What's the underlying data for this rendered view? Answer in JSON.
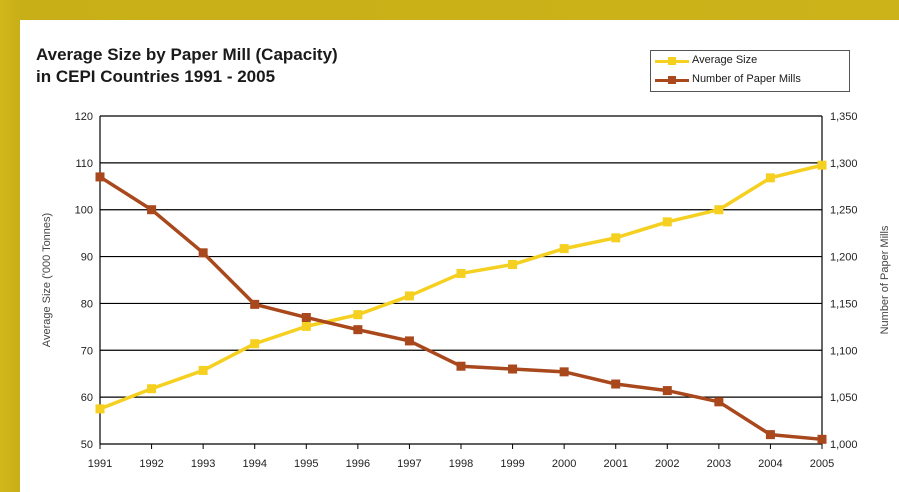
{
  "chart_data": {
    "type": "line",
    "title_line1": "Average Size by Paper Mill (Capacity)",
    "title_line2": "in CEPI Countries 1991 - 2005",
    "ylabel_left": "Average Size ('000 Tonnes)",
    "ylabel_right": "Number of Paper Mills",
    "x": [
      "1991",
      "1992",
      "1993",
      "1994",
      "1995",
      "1996",
      "1997",
      "1998",
      "1999",
      "2000",
      "2001",
      "2002",
      "2003",
      "2004",
      "2005"
    ],
    "y_left_ticks": [
      "50",
      "60",
      "70",
      "80",
      "90",
      "100",
      "110",
      "120"
    ],
    "y_left_range": [
      50,
      120
    ],
    "y_right_ticks": [
      "1,000",
      "1,050",
      "1,100",
      "1,150",
      "1,200",
      "1,250",
      "1,300",
      "1,350"
    ],
    "y_right_range": [
      1000,
      1350
    ],
    "grid": "horizontal",
    "legend_position": "top-right",
    "series": [
      {
        "name": "Average Size",
        "axis": "left",
        "color": "#f5d020",
        "values": [
          57.5,
          61.8,
          65.7,
          71.4,
          75.1,
          77.6,
          81.6,
          86.4,
          88.3,
          91.7,
          94.0,
          97.4,
          100.0,
          106.8,
          109.5
        ]
      },
      {
        "name": "Number of Paper Mills",
        "axis": "right",
        "color": "#a8481c",
        "values": [
          1285,
          1250,
          1204,
          1149,
          1135,
          1122,
          1110,
          1083,
          1080,
          1077,
          1064,
          1057,
          1045,
          1010,
          1005
        ]
      }
    ]
  }
}
